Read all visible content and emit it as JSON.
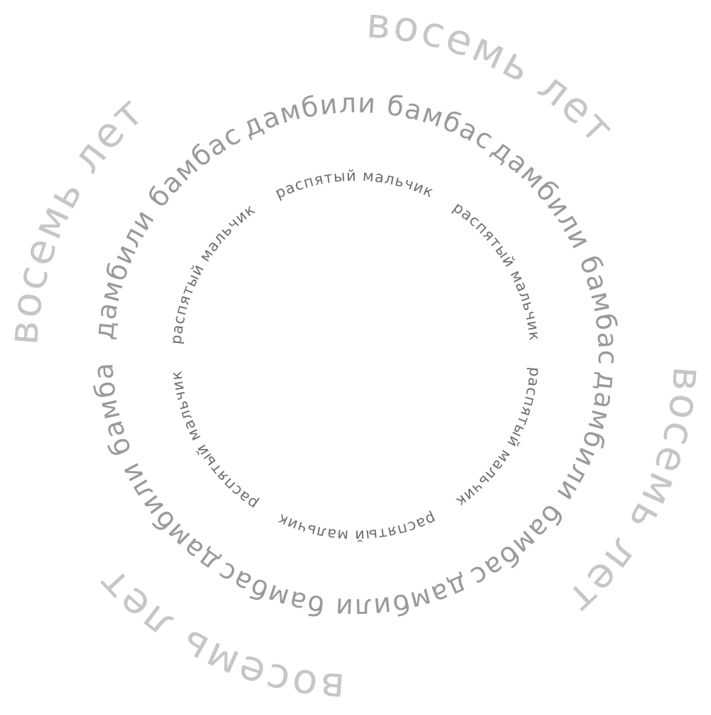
{
  "rings": {
    "outer": {
      "segments": [
        "восемь лет",
        "восемь лет",
        "восемь лет",
        "восемь лет"
      ],
      "color": "#c6c6c6"
    },
    "middle": {
      "segments": [
        "дамбили бамбас",
        "дамбили бамбас",
        "дамбили бамбас",
        "дамбили бамбас",
        "дамбили бамбас",
        "дамбили бамбас"
      ],
      "color": "#9a9a9a"
    },
    "inner": {
      "segments": [
        "распятый мальчик",
        "распятый мальчик",
        "распятый мальчик",
        "распятый мальчик",
        "распятый мальчик",
        "распятый мальчик"
      ],
      "color": "#6e6e6e"
    }
  }
}
